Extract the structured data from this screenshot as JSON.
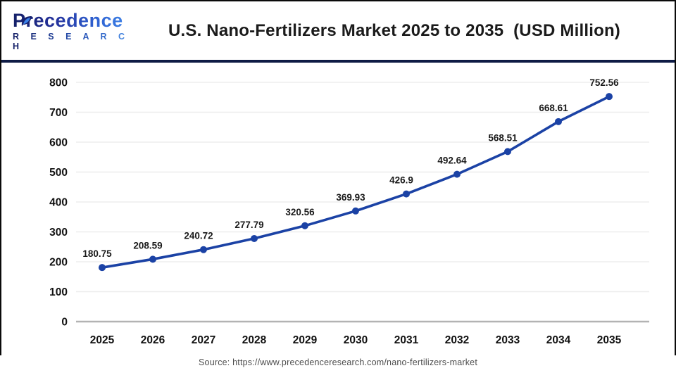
{
  "header": {
    "logo": {
      "line1": "Precedence",
      "line2": "R E S E A R C H"
    },
    "title": "U.S. Nano-Fertilizers Market 2025 to 2035  (USD Million)"
  },
  "chart_data": {
    "type": "line",
    "x": [
      2025,
      2026,
      2027,
      2028,
      2029,
      2030,
      2031,
      2032,
      2033,
      2034,
      2035
    ],
    "values": [
      180.75,
      208.59,
      240.72,
      277.79,
      320.56,
      369.93,
      426.9,
      492.64,
      568.51,
      668.61,
      752.56
    ],
    "series_name": "U.S. Nano-Fertilizers Market (USD Million)",
    "title": "U.S. Nano-Fertilizers Market 2025 to 2035  (USD Million)",
    "xlabel": "",
    "ylabel": "",
    "ylim": [
      0,
      800
    ],
    "ytick_step": 100,
    "grid": true,
    "legend": "none",
    "line_color": "#1b42a5",
    "marker_color": "#1b42a5",
    "value_label_color": "#1a1a1a",
    "tick_label_color": "#111111"
  },
  "source": {
    "text": "Source: https://www.precedenceresearch.com/nano-fertilizers-market"
  },
  "colors": {
    "divider": "#0e1b45",
    "frame": "#0a0a0a",
    "grid": "#ededed",
    "axis_line": "#b3b3b3",
    "logo_navy": "#141f66",
    "logo_blue": "#3f87ea",
    "leaf_blue": "#3b82e8"
  }
}
